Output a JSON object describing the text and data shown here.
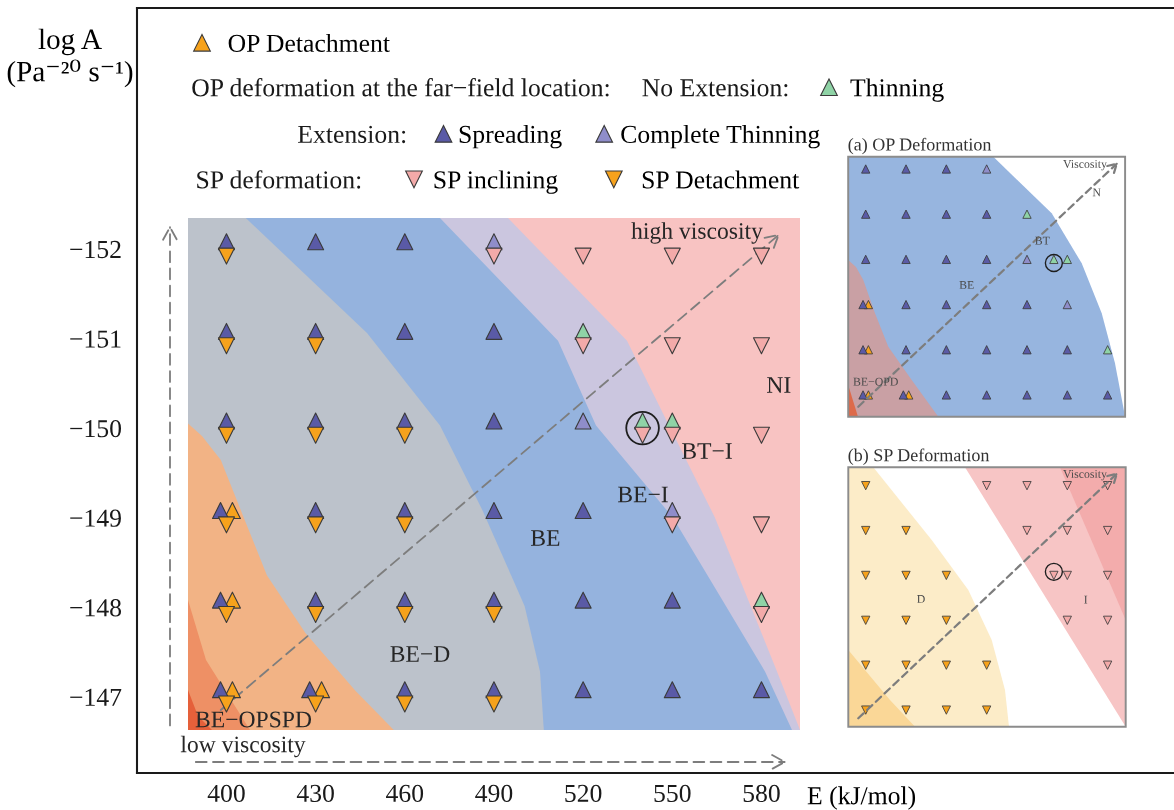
{
  "chart_data": {
    "type": "scatter",
    "xlabel": "E (kJ/mol)",
    "ylabel": "log A\n(Pa⁻²⁰ s⁻¹)",
    "xlim": [
      369.9,
      718.8
    ],
    "ylim": [
      -146.15,
      -154.69
    ],
    "xticks": [
      400,
      430,
      460,
      490,
      520,
      550,
      580
    ],
    "yticks": [
      {
        "value": -152,
        "label": "−152"
      },
      {
        "value": -151,
        "label": "−151"
      },
      {
        "value": -150,
        "label": "−150"
      },
      {
        "value": -149,
        "label": "−149"
      },
      {
        "value": -148,
        "label": "−148"
      },
      {
        "value": -147,
        "label": "−147"
      }
    ],
    "legend": "top left",
    "series": [
      {
        "name": "OP Detachment",
        "color": "#f6a21c",
        "marker": "triangle",
        "x": [
          402,
          402,
          402,
          432
        ],
        "values": [
          -149.08,
          -148.08,
          -147.08,
          -147.08
        ]
      },
      {
        "name": "Thinning",
        "color": "#8fd3a6",
        "marker": "triangle",
        "x": [
          520,
          540,
          550,
          580
        ],
        "values": [
          -151.08,
          -150.08,
          -150.08,
          -148.08
        ]
      },
      {
        "name": "Spreading",
        "color": "#5a5aa6",
        "marker": "triangle",
        "x": [
          400,
          430,
          460,
          400,
          430,
          460,
          490,
          400,
          430,
          460,
          490,
          398,
          430,
          460,
          490,
          520,
          398,
          430,
          460,
          490,
          520,
          550,
          398,
          428,
          460,
          490,
          520,
          550,
          580
        ],
        "values": [
          -152.08,
          -152.08,
          -152.08,
          -151.08,
          -151.08,
          -151.08,
          -151.08,
          -150.08,
          -150.08,
          -150.08,
          -150.08,
          -149.08,
          -149.08,
          -149.08,
          -149.08,
          -149.08,
          -148.08,
          -148.08,
          -148.08,
          -148.08,
          -148.08,
          -148.08,
          -147.08,
          -147.08,
          -147.08,
          -147.08,
          -147.08,
          -147.08,
          -147.08
        ]
      },
      {
        "name": "Complete Thinning",
        "color": "#8f8dca",
        "marker": "triangle",
        "x": [
          490,
          520,
          550
        ],
        "values": [
          -152.08,
          -150.08,
          -149.08
        ]
      },
      {
        "name": "SP inclining",
        "color": "#f3aaa9",
        "marker": "triangle_down",
        "x": [
          490,
          520,
          550,
          580,
          520,
          550,
          580,
          540,
          550,
          580,
          550,
          580,
          580
        ],
        "values": [
          -151.92,
          -151.92,
          -151.92,
          -151.92,
          -150.92,
          -150.92,
          -150.92,
          -149.92,
          -149.92,
          -149.92,
          -148.92,
          -148.92,
          -147.92
        ]
      },
      {
        "name": "SP Detachment",
        "color": "#f6a21c",
        "marker": "triangle_down",
        "x": [
          400,
          400,
          430,
          400,
          430,
          460,
          400,
          430,
          460,
          400,
          430,
          460,
          490,
          400,
          430,
          460,
          490
        ],
        "values": [
          -151.92,
          -150.92,
          -150.92,
          -149.92,
          -149.92,
          -149.92,
          -148.92,
          -148.92,
          -148.92,
          -147.92,
          -147.92,
          -147.92,
          -147.92,
          -146.92,
          -146.92,
          -146.92,
          -146.92
        ]
      },
      {
        "color": "#1e1e1e",
        "marker": "circle",
        "x": [
          540
        ],
        "values": [
          -150
        ]
      }
    ],
    "annotations": [
      "OP deformation at the far−field location:",
      "No Extension:",
      "Extension:",
      "SP deformation:",
      "high viscosity",
      "NI",
      "BT−I",
      "BE−I",
      "BE",
      "BE−D",
      "BE−OPSPD",
      "low viscosity",
      "(a) OP Deformation",
      "Viscosity",
      "N",
      "BT",
      "BE",
      "BE−OPD",
      "(b) SP Deformation",
      "Viscosity",
      "D",
      "I"
    ]
  }
}
